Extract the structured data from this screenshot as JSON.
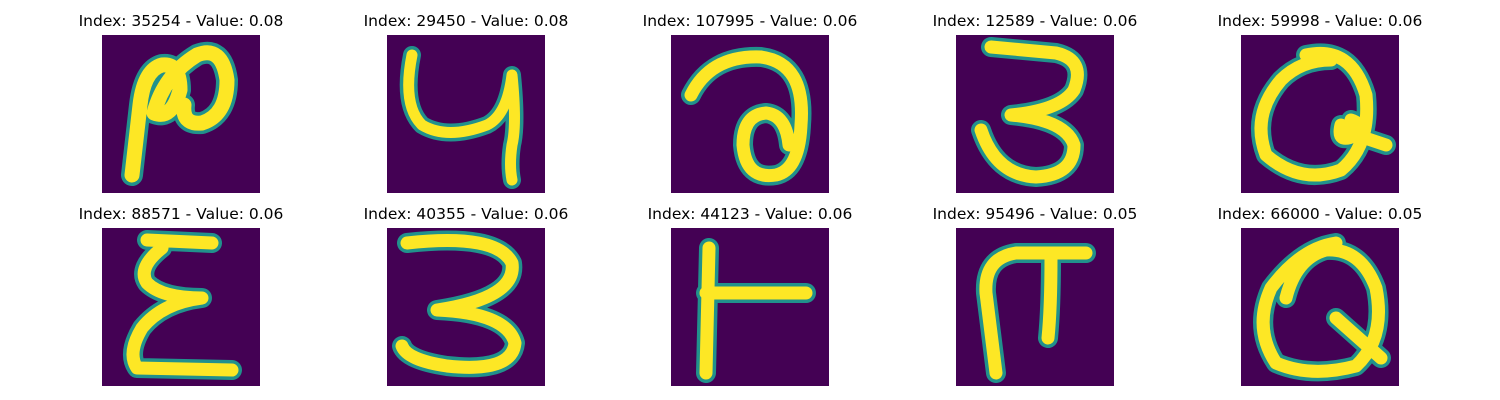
{
  "figure": {
    "colors": {
      "background": "#440154",
      "stroke": "#fde725",
      "stroke_edge": "#21918c"
    },
    "panels": [
      {
        "title": "Index: 35254 - Value: 0.08",
        "glyph": "glyph-r-like"
      },
      {
        "title": "Index: 29450 - Value: 0.08",
        "glyph": "glyph-y-like"
      },
      {
        "title": "Index: 107995 - Value: 0.06",
        "glyph": "glyph-a-like"
      },
      {
        "title": "Index: 12589 - Value: 0.06",
        "glyph": "glyph-3-like"
      },
      {
        "title": "Index: 59998 - Value: 0.06",
        "glyph": "glyph-q-like"
      },
      {
        "title": "Index: 88571 - Value: 0.06",
        "glyph": "glyph-sigma-like"
      },
      {
        "title": "Index: 40355 - Value: 0.06",
        "glyph": "glyph-3-like"
      },
      {
        "title": "Index: 44123 - Value: 0.06",
        "glyph": "glyph-t-like"
      },
      {
        "title": "Index: 95496 - Value: 0.05",
        "glyph": "glyph-pi-like"
      },
      {
        "title": "Index: 66000 - Value: 0.05",
        "glyph": "glyph-q-like"
      }
    ]
  }
}
